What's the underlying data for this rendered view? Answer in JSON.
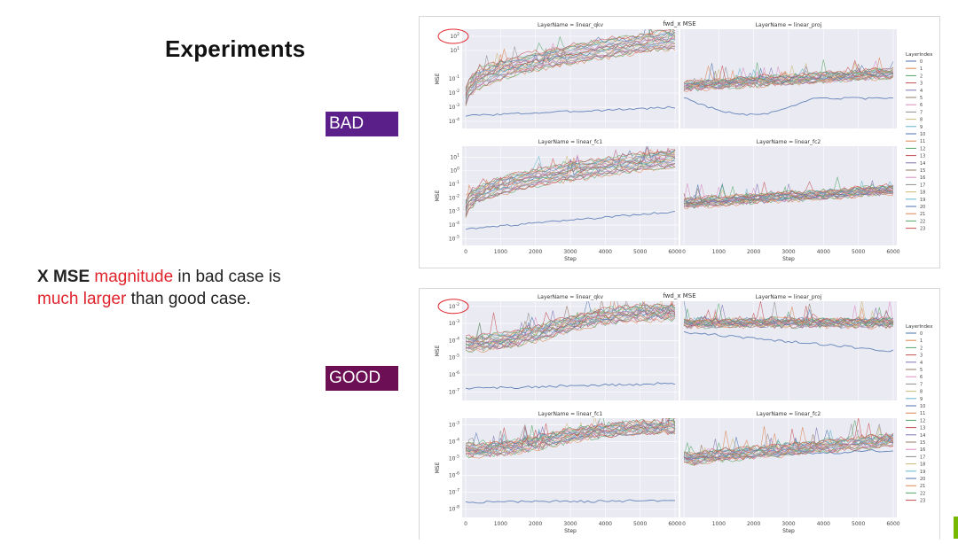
{
  "slide": {
    "title": "Experiments",
    "bad_label": "BAD",
    "good_label": "GOOD",
    "caption": {
      "part1": "X MSE",
      "part2": "magnitude",
      "part3": "in bad case is",
      "part4": "much larger",
      "part5": "than good case."
    }
  },
  "chart_data": [
    {
      "type": "line",
      "title": "fwd_x MSE",
      "case": "BAD",
      "legend": {
        "title": "LayerIndex",
        "placement": "right",
        "entries": [
          "0",
          "1",
          "2",
          "3",
          "4",
          "5",
          "6",
          "7",
          "8",
          "9",
          "10",
          "11",
          "12",
          "13",
          "14",
          "15",
          "16",
          "17",
          "18",
          "19",
          "20",
          "21",
          "22",
          "23"
        ]
      },
      "xlabel": "Step",
      "xticks": [
        "0",
        "1000",
        "2000",
        "3000",
        "4000",
        "5000",
        "6000"
      ],
      "xlim": [
        0,
        6000
      ],
      "panels": [
        {
          "name": "LayerName = linear_qkv",
          "ylabel": "MSE",
          "yscale": "log",
          "yticks": [
            "10^2",
            "10^1",
            "10^-1",
            "10^-2",
            "10^-3",
            "10^-4"
          ],
          "ylim_exp": [
            -4.5,
            2.5
          ],
          "start_exp": -2.2,
          "end_exp": 1.8,
          "outlier_exp": [
            -3.6,
            -3.0
          ],
          "rise": "concave",
          "circled_tick": "10^2"
        },
        {
          "name": "LayerName = linear_proj",
          "ylabel": "",
          "yscale": "log",
          "yticks": [],
          "ylim_exp": [
            -4.5,
            2.5
          ],
          "start_exp": -1.5,
          "end_exp": -0.6,
          "outlier_exp": [
            -2.3,
            -2.4
          ],
          "rise": "linear",
          "outlier_dip": true
        },
        {
          "name": "LayerName = linear_fc1",
          "ylabel": "MSE",
          "yscale": "log",
          "yticks": [
            "10^1",
            "10^0",
            "10^-1",
            "10^-2",
            "10^-3",
            "10^-4",
            "10^-5"
          ],
          "ylim_exp": [
            -5.5,
            1.8
          ],
          "start_exp": -2.8,
          "end_exp": 0.9,
          "outlier_exp": [
            -4.3,
            -3.0
          ],
          "rise": "concave"
        },
        {
          "name": "LayerName = linear_fc2",
          "ylabel": "",
          "yscale": "log",
          "yticks": [],
          "ylim_exp": [
            -5.5,
            1.8
          ],
          "start_exp": -2.4,
          "end_exp": -1.4,
          "outlier_exp": [
            -2.4,
            -1.6
          ],
          "rise": "linear"
        }
      ]
    },
    {
      "type": "line",
      "title": "fwd_x MSE",
      "case": "GOOD",
      "legend": {
        "title": "LayerIndex",
        "placement": "right",
        "entries": [
          "0",
          "1",
          "2",
          "3",
          "4",
          "5",
          "6",
          "7",
          "8",
          "9",
          "10",
          "11",
          "12",
          "13",
          "14",
          "15",
          "16",
          "17",
          "18",
          "19",
          "20",
          "21",
          "22",
          "23"
        ]
      },
      "xlabel": "Step",
      "xticks": [
        "0",
        "1000",
        "2000",
        "3000",
        "4000",
        "5000",
        "6000"
      ],
      "xlim": [
        0,
        6000
      ],
      "panels": [
        {
          "name": "LayerName = linear_qkv",
          "ylabel": "MSE",
          "yscale": "log",
          "yticks": [
            "10^-2",
            "10^-3",
            "10^-4",
            "10^-5",
            "10^-6",
            "10^-7"
          ],
          "ylim_exp": [
            -7.5,
            -1.7
          ],
          "start_exp": -4.3,
          "end_exp": -2.3,
          "outlier_exp": [
            -6.8,
            -6.5
          ],
          "rise": "sigmoid",
          "circled_tick": "10^-2"
        },
        {
          "name": "LayerName = linear_proj",
          "ylabel": "",
          "yscale": "log",
          "yticks": [],
          "ylim_exp": [
            -7.5,
            -1.7
          ],
          "start_exp": -3.0,
          "end_exp": -2.9,
          "outlier_exp": [
            -3.5,
            -4.6
          ],
          "rise": "flat"
        },
        {
          "name": "LayerName = linear_fc1",
          "ylabel": "MSE",
          "yscale": "log",
          "yticks": [
            "10^-3",
            "10^-4",
            "10^-5",
            "10^-6",
            "10^-7",
            "10^-8"
          ],
          "ylim_exp": [
            -8.5,
            -2.6
          ],
          "start_exp": -4.6,
          "end_exp": -3.1,
          "outlier_exp": [
            -7.6,
            -7.5
          ],
          "rise": "sigmoid"
        },
        {
          "name": "LayerName = linear_fc2",
          "ylabel": "",
          "yscale": "log",
          "yticks": [],
          "ylim_exp": [
            -8.5,
            -2.6
          ],
          "start_exp": -5.0,
          "end_exp": -3.9,
          "outlier_exp": [
            -5.0,
            -4.5
          ],
          "rise": "linear"
        }
      ]
    }
  ],
  "colors": {
    "series": [
      "#4c72b0",
      "#dd8452",
      "#55a868",
      "#c44e52",
      "#8172b3",
      "#937860",
      "#da8bc3",
      "#8c8c8c",
      "#ccb974",
      "#64b5cd"
    ],
    "panel_bg": "#eaeaf2",
    "circle": "#e0242c",
    "bad_badge": "#5b1f8a",
    "good_badge": "#6d0f55",
    "brand_accent": "#76b900"
  }
}
